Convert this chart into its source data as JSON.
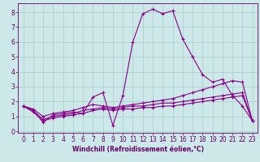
{
  "title": "",
  "xlabel": "Windchill (Refroidissement éolien,°C)",
  "background_color": "#cce8e8",
  "grid_color": "#aacccc",
  "line_color": "#880088",
  "xlim": [
    -0.5,
    23.5
  ],
  "ylim": [
    -0.1,
    8.6
  ],
  "xticks": [
    0,
    1,
    2,
    3,
    4,
    5,
    6,
    7,
    8,
    9,
    10,
    11,
    12,
    13,
    14,
    15,
    16,
    17,
    18,
    19,
    20,
    21,
    22,
    23
  ],
  "yticks": [
    0,
    1,
    2,
    3,
    4,
    5,
    6,
    7,
    8
  ],
  "series": [
    [
      1.7,
      1.4,
      0.6,
      1.1,
      1.2,
      1.3,
      1.2,
      2.3,
      2.6,
      0.4,
      2.4,
      6.0,
      7.9,
      8.2,
      7.9,
      8.1,
      6.2,
      5.0,
      3.8,
      3.3,
      3.5,
      2.4,
      1.7,
      0.7
    ],
    [
      1.7,
      1.5,
      1.0,
      1.2,
      1.3,
      1.4,
      1.6,
      1.8,
      1.7,
      1.6,
      1.7,
      1.8,
      1.9,
      2.0,
      2.1,
      2.2,
      2.4,
      2.6,
      2.8,
      3.0,
      3.2,
      3.4,
      3.3,
      0.7
    ],
    [
      1.7,
      1.4,
      0.8,
      1.0,
      1.1,
      1.2,
      1.4,
      1.5,
      1.6,
      1.5,
      1.6,
      1.7,
      1.7,
      1.8,
      1.9,
      1.9,
      2.0,
      2.1,
      2.2,
      2.3,
      2.4,
      2.5,
      2.6,
      0.7
    ],
    [
      1.7,
      1.3,
      0.7,
      0.9,
      1.0,
      1.1,
      1.2,
      1.4,
      1.5,
      1.4,
      1.5,
      1.5,
      1.6,
      1.6,
      1.7,
      1.7,
      1.8,
      1.9,
      2.0,
      2.1,
      2.2,
      2.3,
      2.4,
      0.7
    ]
  ],
  "tick_fontsize": 5.5,
  "xlabel_fontsize": 5.5,
  "tick_color": "#660066",
  "spine_color": "#660066"
}
